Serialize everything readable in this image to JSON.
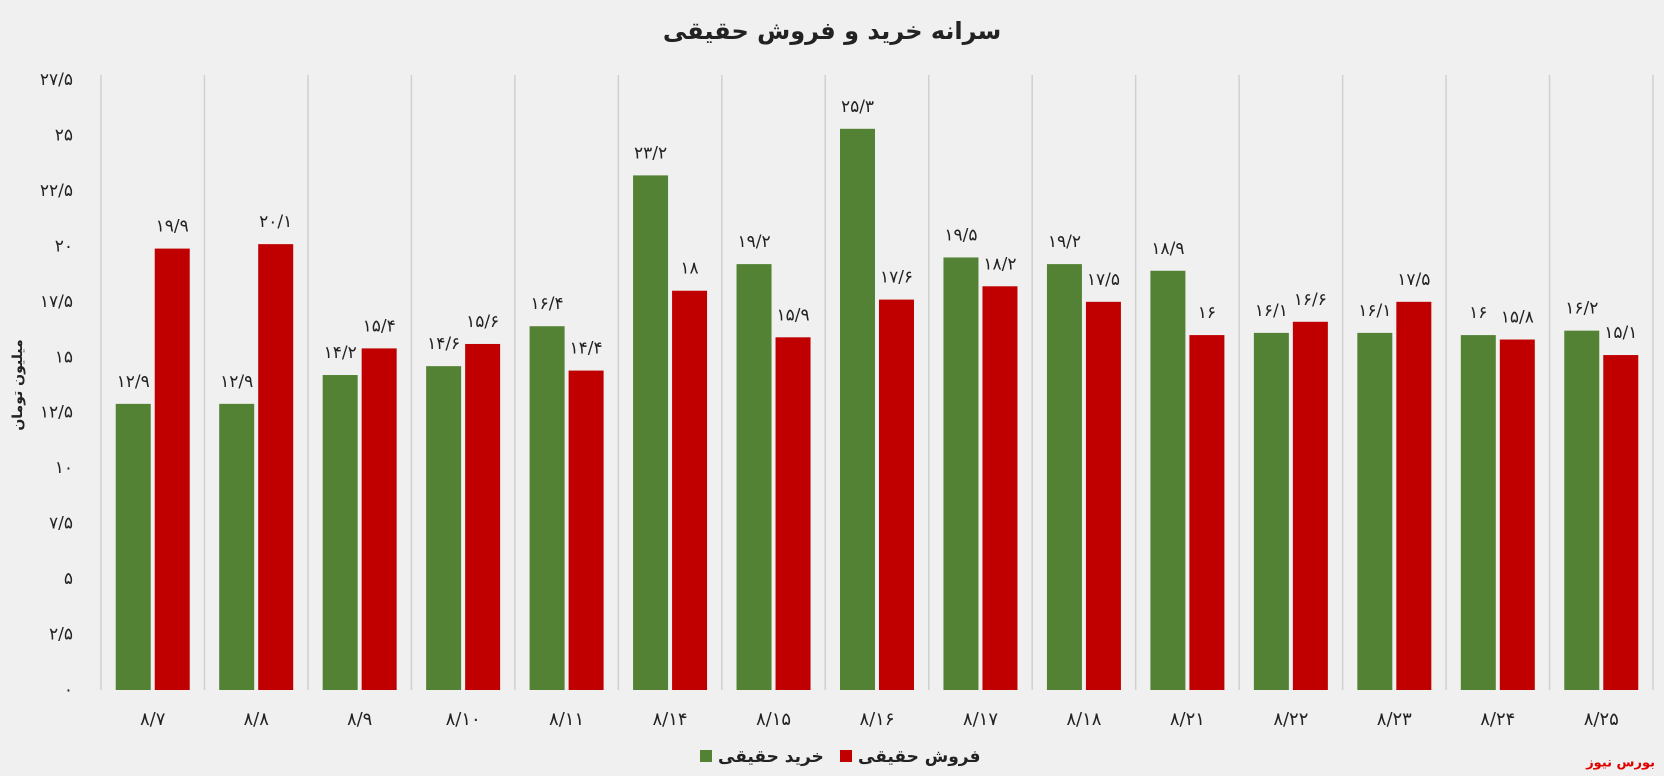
{
  "chart_data": {
    "type": "bar",
    "title": "سرانه خرید و فروش حقیقی",
    "y_label": "میلیون تومان",
    "source": "بورس نیوز",
    "categories": [
      "۸/۷",
      "۸/۸",
      "۸/۹",
      "۸/۱۰",
      "۸/۱۱",
      "۸/۱۴",
      "۸/۱۵",
      "۸/۱۶",
      "۸/۱۷",
      "۸/۱۸",
      "۸/۲۱",
      "۸/۲۲",
      "۸/۲۳",
      "۸/۲۴",
      "۸/۲۵"
    ],
    "series": [
      {
        "name": "خرید حقیقی",
        "color": "#548235",
        "values": [
          12.9,
          12.9,
          14.2,
          14.6,
          16.4,
          23.2,
          19.2,
          25.3,
          19.5,
          19.2,
          18.9,
          16.1,
          16.1,
          16,
          16.2
        ],
        "value_labels": [
          "۱۲/۹",
          "۱۲/۹",
          "۱۴/۲",
          "۱۴/۶",
          "۱۶/۴",
          "۲۳/۲",
          "۱۹/۲",
          "۲۵/۳",
          "۱۹/۵",
          "۱۹/۲",
          "۱۸/۹",
          "۱۶/۱",
          "۱۶/۱",
          "۱۶",
          "۱۶/۲"
        ]
      },
      {
        "name": "فروش حقیقی",
        "color": "#c00000",
        "values": [
          19.9,
          20.1,
          15.4,
          15.6,
          14.4,
          18,
          15.9,
          17.6,
          18.2,
          17.5,
          16,
          16.6,
          17.5,
          15.8,
          15.1
        ],
        "value_labels": [
          "۱۹/۹",
          "۲۰/۱",
          "۱۵/۴",
          "۱۵/۶",
          "۱۴/۴",
          "۱۸",
          "۱۵/۹",
          "۱۷/۶",
          "۱۸/۲",
          "۱۷/۵",
          "۱۶",
          "۱۶/۶",
          "۱۷/۵",
          "۱۵/۸",
          "۱۵/۱"
        ]
      }
    ],
    "ylim": [
      0,
      27.5
    ],
    "yticks": [
      {
        "value": 0,
        "label": "۰"
      },
      {
        "value": 2.5,
        "label": "۲/۵"
      },
      {
        "value": 5,
        "label": "۵"
      },
      {
        "value": 7.5,
        "label": "۷/۵"
      },
      {
        "value": 10,
        "label": "۱۰"
      },
      {
        "value": 12.5,
        "label": "۱۲/۵"
      },
      {
        "value": 15,
        "label": "۱۵"
      },
      {
        "value": 17.5,
        "label": "۱۷/۵"
      },
      {
        "value": 20,
        "label": "۲۰"
      },
      {
        "value": 22.5,
        "label": "۲۲/۵"
      },
      {
        "value": 25,
        "label": "۲۵"
      },
      {
        "value": 27.5,
        "label": "۲۷/۵"
      }
    ],
    "grid": true
  }
}
